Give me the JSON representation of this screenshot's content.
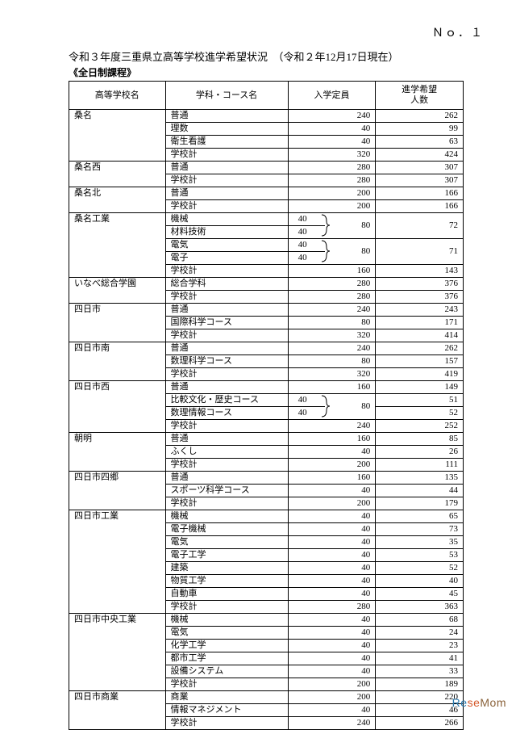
{
  "pageNo": "Ｎｏ．１",
  "title": "令和３年度三重県立高等学校進学希望状況　（令和２年12月17日現在）",
  "subtitle": "《全日制課程》",
  "headers": {
    "school": "高等学校名",
    "course": "学科・コース名",
    "capacity": "入学定員",
    "wish": "進学希望\n人数"
  },
  "watermark": {
    "re": "Re",
    "se": "se",
    "mom": "Mom"
  }
}
